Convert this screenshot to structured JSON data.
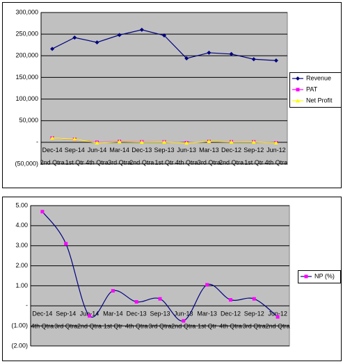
{
  "chart_data": [
    {
      "type": "line",
      "categories": [
        [
          "Dec-14",
          "2nd Qtra"
        ],
        [
          "Sep-14",
          "1st Qtr"
        ],
        [
          "Jun-14",
          "4th Qtra"
        ],
        [
          "Mar-14",
          "3rd Qtra"
        ],
        [
          "Dec-13",
          "2nd Qtra"
        ],
        [
          "Sep-13",
          "1st Qtr"
        ],
        [
          "Jun-13",
          "4th Qtra"
        ],
        [
          "Mar-13",
          "3rd Qtra"
        ],
        [
          "Dec-12",
          "2nd Qtra"
        ],
        [
          "Sep-12",
          "1st Qtr"
        ],
        [
          "Jun-12",
          "4th Qtra"
        ]
      ],
      "series": [
        {
          "name": "Revenue",
          "color": "#000080",
          "marker": "diamond",
          "values": [
            216000,
            242000,
            231000,
            248000,
            260000,
            247000,
            194000,
            207000,
            204000,
            192000,
            189000
          ]
        },
        {
          "name": "PAT",
          "color": "#ff00ff",
          "marker": "square",
          "values": [
            10000,
            7000,
            0,
            2000,
            1000,
            1000,
            -1000,
            2000,
            1000,
            1000,
            -1000
          ]
        },
        {
          "name": "Net Profit",
          "color": "#ffff00",
          "marker": "triangle",
          "values": [
            10000,
            7500,
            -1000,
            1500,
            500,
            800,
            -1500,
            2200,
            700,
            800,
            -1000
          ]
        }
      ],
      "ylim": [
        -50000,
        300000
      ],
      "yticks": [
        {
          "value": -50000,
          "label": "(50,000)"
        },
        {
          "value": 0,
          "label": "-"
        },
        {
          "value": 50000,
          "label": "50,000"
        },
        {
          "value": 100000,
          "label": "100,000"
        },
        {
          "value": 150000,
          "label": "150,000"
        },
        {
          "value": 200000,
          "label": "200,000"
        },
        {
          "value": 250000,
          "label": "250,000"
        },
        {
          "value": 300000,
          "label": "300,000"
        }
      ],
      "grid": true,
      "legend": "right",
      "smooth": false
    },
    {
      "type": "line",
      "categories": [
        [
          "Dec-14",
          "4th Qtra"
        ],
        [
          "Sep-14",
          "3rd Qtra"
        ],
        [
          "Jun-14",
          "2nd Qtra"
        ],
        [
          "Mar-14",
          "1st Qtr"
        ],
        [
          "Dec-13",
          "4th Qtra"
        ],
        [
          "Sep-13",
          "3rd Qtra"
        ],
        [
          "Jun-13",
          "2nd Qtra"
        ],
        [
          "Mar-13",
          "1st Qtr"
        ],
        [
          "Dec-12",
          "4th Qtra"
        ],
        [
          "Sep-12",
          "3rd Qtra"
        ],
        [
          "Jun-12",
          "2nd Qtra"
        ]
      ],
      "series": [
        {
          "name": "NP (%)",
          "color": "#000080",
          "marker_color": "#ff00ff",
          "marker": "square",
          "values": [
            4.7,
            3.1,
            -0.5,
            0.75,
            0.2,
            0.35,
            -0.75,
            1.05,
            0.3,
            0.35,
            -0.55
          ]
        }
      ],
      "ylim": [
        -2,
        5
      ],
      "yticks": [
        {
          "value": -2,
          "label": "(2.00)"
        },
        {
          "value": -1,
          "label": "(1.00)"
        },
        {
          "value": 0,
          "label": "-"
        },
        {
          "value": 1,
          "label": "1.00"
        },
        {
          "value": 2,
          "label": "2.00"
        },
        {
          "value": 3,
          "label": "3.00"
        },
        {
          "value": 4,
          "label": "4.00"
        },
        {
          "value": 5,
          "label": "5.00"
        }
      ],
      "grid": true,
      "legend": "right",
      "smooth": true
    }
  ]
}
